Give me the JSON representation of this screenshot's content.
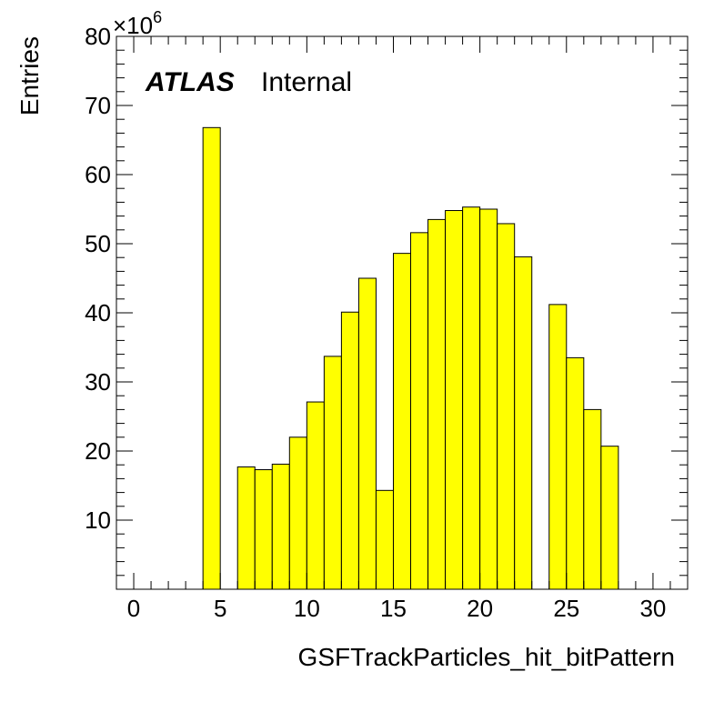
{
  "chart_data": {
    "type": "bar",
    "title": "",
    "xlabel": "GSFTrackParticles_hit_bitPattern",
    "ylabel": "Entries",
    "y_multiplier_base": "×10",
    "y_multiplier_exponent": "6",
    "annotation": {
      "experiment": "ATLAS",
      "status": "Internal"
    },
    "xlim": [
      -1,
      32
    ],
    "ylim": [
      0,
      80
    ],
    "x_ticks": [
      0,
      5,
      10,
      15,
      20,
      25,
      30
    ],
    "y_ticks": [
      10,
      20,
      30,
      40,
      50,
      60,
      70,
      80
    ],
    "bin_width": 1,
    "bins": [
      {
        "low": 4,
        "value": 66.8
      },
      {
        "low": 6,
        "value": 17.7
      },
      {
        "low": 7,
        "value": 17.3
      },
      {
        "low": 8,
        "value": 18.1
      },
      {
        "low": 9,
        "value": 22.0
      },
      {
        "low": 10,
        "value": 27.1
      },
      {
        "low": 11,
        "value": 33.7
      },
      {
        "low": 12,
        "value": 40.1
      },
      {
        "low": 13,
        "value": 45.0
      },
      {
        "low": 14,
        "value": 14.3
      },
      {
        "low": 15,
        "value": 48.6
      },
      {
        "low": 16,
        "value": 51.6
      },
      {
        "low": 17,
        "value": 53.5
      },
      {
        "low": 18,
        "value": 54.8
      },
      {
        "low": 19,
        "value": 55.3
      },
      {
        "low": 20,
        "value": 55.0
      },
      {
        "low": 21,
        "value": 52.9
      },
      {
        "low": 22,
        "value": 48.1
      },
      {
        "low": 24,
        "value": 41.2
      },
      {
        "low": 25,
        "value": 33.5
      },
      {
        "low": 26,
        "value": 26.0
      },
      {
        "low": 27,
        "value": 20.7
      }
    ],
    "colors": {
      "fill": "#ffff00",
      "edge": "#000000"
    },
    "grid": false
  }
}
